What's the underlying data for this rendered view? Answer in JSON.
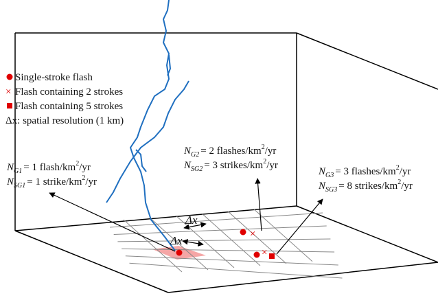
{
  "legend": [
    {
      "marker": "circle",
      "label": "Single-stroke flash"
    },
    {
      "marker": "cross",
      "label": "Flash containing 2 strokes"
    },
    {
      "marker": "square",
      "label": "Flash containing 5 strokes"
    },
    {
      "marker": "none",
      "symbol": "Δx",
      "label": ": spatial resolution (1 km)"
    }
  ],
  "grid_labels": [
    "Δx",
    "Δx"
  ],
  "annotations": [
    {
      "lines": [
        {
          "symbol": "N",
          "sub": "G1",
          "text": "= 1 flash/km",
          "sup": "2",
          "tail": "/yr"
        },
        {
          "symbol": "N",
          "sub": "SG1",
          "text": "= 1 strike/km",
          "sup": "2",
          "tail": "/yr"
        }
      ]
    },
    {
      "lines": [
        {
          "symbol": "N",
          "sub": "G2",
          "text": "= 2 flashes/km",
          "sup": "2",
          "tail": "/yr"
        },
        {
          "symbol": "N",
          "sub": "SG2",
          "text": "= 3 strikes/km",
          "sup": "2",
          "tail": "/yr"
        }
      ]
    },
    {
      "lines": [
        {
          "symbol": "N",
          "sub": "G3",
          "text": "= 3 flashes/km",
          "sup": "2",
          "tail": "/yr"
        },
        {
          "symbol": "N",
          "sub": "SG3",
          "text": "= 8 strikes/km",
          "sup": "2",
          "tail": "/yr"
        }
      ]
    }
  ]
}
